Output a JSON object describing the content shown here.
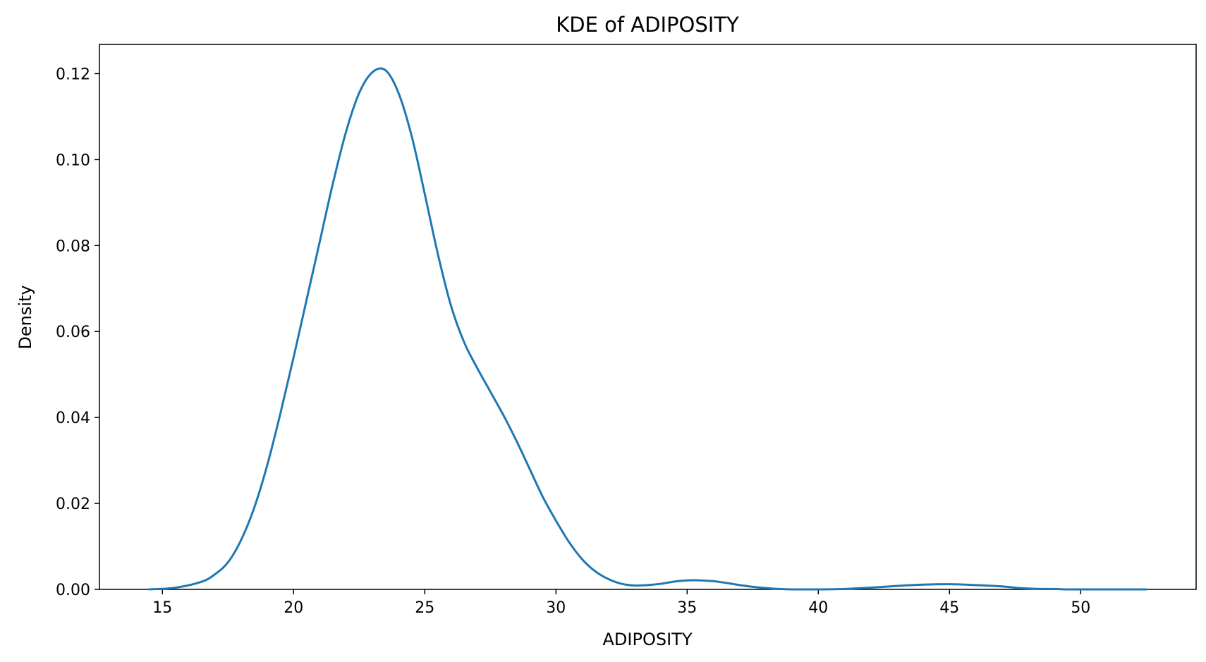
{
  "chart_data": {
    "type": "line",
    "title": "KDE of ADIPOSITY",
    "xlabel": "ADIPOSITY",
    "ylabel": "Density",
    "xlim": [
      12.6,
      54.4
    ],
    "ylim": [
      0,
      0.1268
    ],
    "xticks": [
      15,
      20,
      25,
      30,
      35,
      40,
      45,
      50
    ],
    "yticks": [
      0.0,
      0.02,
      0.04,
      0.06,
      0.08,
      0.1,
      0.12
    ],
    "xtick_labels": [
      "15",
      "20",
      "25",
      "30",
      "35",
      "40",
      "45",
      "50"
    ],
    "ytick_labels": [
      "0.00",
      "0.02",
      "0.04",
      "0.06",
      "0.08",
      "0.10",
      "0.12"
    ],
    "grid": false,
    "legend": "none",
    "line_color": "#1f77b4",
    "series": [
      {
        "x": [
          14.5,
          15.5,
          16.5,
          17.0,
          17.5,
          18.0,
          18.5,
          19.0,
          19.5,
          20.0,
          20.5,
          21.0,
          21.5,
          22.0,
          22.5,
          23.0,
          23.5,
          24.0,
          24.5,
          25.0,
          25.5,
          26.0,
          26.5,
          27.0,
          27.5,
          28.0,
          28.5,
          29.0,
          29.5,
          30.0,
          30.5,
          31.0,
          31.5,
          32.0,
          32.5,
          33.0,
          33.5,
          34.0,
          34.5,
          35.0,
          35.5,
          36.0,
          36.5,
          37.0,
          37.5,
          38.0,
          38.5,
          39.0,
          39.5,
          40.0,
          41.0,
          42.0,
          43.0,
          44.0,
          45.0,
          46.0,
          47.0,
          47.5,
          48.0,
          48.5,
          49.0,
          49.5,
          50.0,
          50.5,
          51.0,
          52.0,
          52.5
        ],
        "y": [
          0.0,
          0.0004,
          0.0018,
          0.0035,
          0.0063,
          0.0115,
          0.019,
          0.029,
          0.041,
          0.054,
          0.0675,
          0.081,
          0.0945,
          0.1065,
          0.1155,
          0.1203,
          0.1208,
          0.1155,
          0.1055,
          0.092,
          0.078,
          0.066,
          0.0575,
          0.0515,
          0.046,
          0.0405,
          0.0345,
          0.028,
          0.0215,
          0.016,
          0.011,
          0.007,
          0.0042,
          0.0024,
          0.0013,
          0.0009,
          0.001,
          0.0013,
          0.0018,
          0.0021,
          0.0021,
          0.0019,
          0.0015,
          0.001,
          0.0006,
          0.0003,
          0.0001,
          0.0,
          0.0,
          0.0,
          0.0001,
          0.0004,
          0.0008,
          0.0011,
          0.0012,
          0.001,
          0.0007,
          0.0004,
          0.0002,
          0.0001,
          0.0001,
          0.0,
          0.0,
          0.0,
          0.0,
          0.0,
          0.0
        ]
      }
    ]
  }
}
